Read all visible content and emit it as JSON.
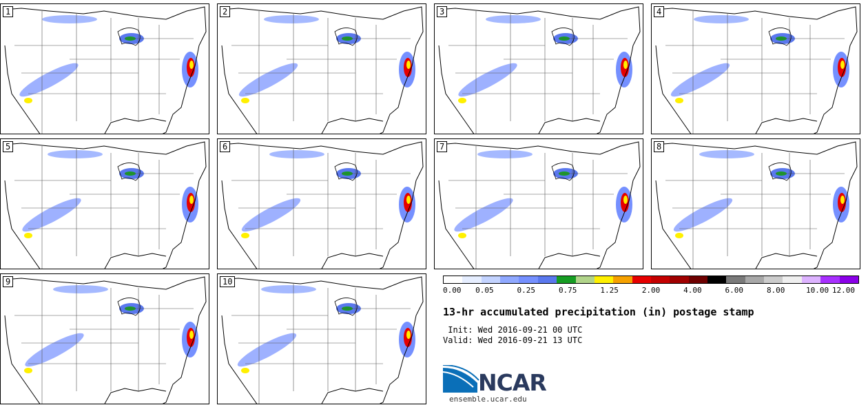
{
  "panels": [
    {
      "label": "1"
    },
    {
      "label": "2"
    },
    {
      "label": "3"
    },
    {
      "label": "4"
    },
    {
      "label": "5"
    },
    {
      "label": "6"
    },
    {
      "label": "7"
    },
    {
      "label": "8"
    },
    {
      "label": "9"
    },
    {
      "label": "10"
    }
  ],
  "colorbar": {
    "colors": [
      "#ffffff",
      "#e6eeff",
      "#c3d3ff",
      "#8fa8ff",
      "#7590ff",
      "#5a78ee",
      "#169d23",
      "#b1d48a",
      "#fff000",
      "#f6a100",
      "#e60000",
      "#c40000",
      "#a00000",
      "#6e0000",
      "#000000",
      "#7a7a7a",
      "#a8a8a8",
      "#cccccc",
      "#efefef",
      "#ddb3ff",
      "#a830ff",
      "#8a00e8"
    ],
    "tick_labels": [
      "0.00",
      "0.05",
      "0.25",
      "0.75",
      "1.25",
      "2.00",
      "4.00",
      "6.00",
      "8.00",
      "10.00",
      "12.00"
    ]
  },
  "title": "13-hr accumulated precipitation (in) postage stamp",
  "init_line": " Init: Wed 2016-09-21 00 UTC",
  "valid_line": "Valid: Wed 2016-09-21 13 UTC",
  "logo": {
    "text": "NCAR",
    "site": "ensemble.ucar.edu",
    "primary_color": "#0a6fb8"
  }
}
